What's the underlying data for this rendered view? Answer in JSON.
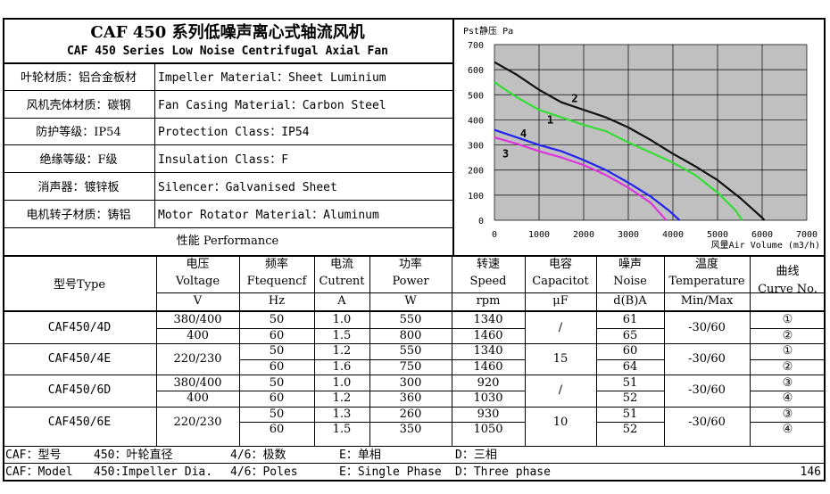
{
  "header": {
    "title_cn": "CAF 450 系列低噪声离心式轴流风机",
    "title_en": "CAF 450 Series Low Noise Centrifugal Axial Fan"
  },
  "specs": [
    {
      "cn": "叶轮材质：铝合金板材",
      "en": "Impeller Material：Sheet Luminium"
    },
    {
      "cn": "风机壳体材质：碳钢",
      "en": "Fan Casing Material：Carbon Steel"
    },
    {
      "cn": "防护等级：IP54",
      "en": "Protection Class：IP54"
    },
    {
      "cn": "绝缘等级：F级",
      "en": "Insulation Class：F"
    },
    {
      "cn": "消声器：镀锌板",
      "en": "Silencer：Galvanised Sheet"
    },
    {
      "cn": "电机转子材质：铸铝",
      "en": "Motor Rotator Material：Aluminum"
    }
  ],
  "performance_label": "性能  Performance",
  "table": {
    "headers": [
      {
        "cn": "型号Type",
        "en": "",
        "unit": ""
      },
      {
        "cn": "电压",
        "en": "Voltage",
        "unit": "V"
      },
      {
        "cn": "频率",
        "en": "Ftequencf",
        "unit": "Hz"
      },
      {
        "cn": "电流",
        "en": "Cutrent",
        "unit": "A"
      },
      {
        "cn": "功率",
        "en": "Power",
        "unit": "W"
      },
      {
        "cn": "转速",
        "en": "Speed",
        "unit": "rpm"
      },
      {
        "cn": "电容",
        "en": "Capacitot",
        "unit": "μF"
      },
      {
        "cn": "噪声",
        "en": "Noise",
        "unit": "d(B)A"
      },
      {
        "cn": "温度",
        "en": "Temperature",
        "unit": "Min/Max"
      },
      {
        "cn": "曲线",
        "en": "Curve No.",
        "unit": ""
      }
    ],
    "groups": [
      {
        "type": "CAF450/4D",
        "capacitor": "/",
        "temperature": "-30/60",
        "rows": [
          {
            "voltage": "380/400",
            "freq": "50",
            "current": "1.0",
            "power": "550",
            "speed": "1340",
            "noise": "61",
            "curve": "①"
          },
          {
            "voltage": "400",
            "freq": "60",
            "current": "1.5",
            "power": "800",
            "speed": "1460",
            "noise": "65",
            "curve": "②"
          }
        ]
      },
      {
        "type": "CAF450/4E",
        "capacitor": "15",
        "temperature": "-30/60",
        "rows": [
          {
            "voltage": "220/230",
            "freq": "50",
            "current": "1.2",
            "power": "550",
            "speed": "1340",
            "noise": "60",
            "curve": "①"
          },
          {
            "voltage": "",
            "freq": "60",
            "current": "1.6",
            "power": "750",
            "speed": "1460",
            "noise": "64",
            "curve": "②"
          }
        ]
      },
      {
        "type": "CAF450/6D",
        "capacitor": "/",
        "temperature": "-30/60",
        "rows": [
          {
            "voltage": "380/400",
            "freq": "50",
            "current": "1.0",
            "power": "300",
            "speed": "920",
            "noise": "51",
            "curve": "③"
          },
          {
            "voltage": "400",
            "freq": "60",
            "current": "1.2",
            "power": "360",
            "speed": "1030",
            "noise": "52",
            "curve": "④"
          }
        ]
      },
      {
        "type": "CAF450/6E",
        "capacitor": "10",
        "temperature": "-30/60",
        "rows": [
          {
            "voltage": "220/230",
            "freq": "50",
            "current": "1.3",
            "power": "260",
            "speed": "930",
            "noise": "51",
            "curve": "③"
          },
          {
            "voltage": "",
            "freq": "60",
            "current": "1.5",
            "power": "350",
            "speed": "1050",
            "noise": "52",
            "curve": "④"
          }
        ]
      }
    ]
  },
  "footer": {
    "line_cn": [
      "CAF：型号",
      "450：叶轮直径",
      "4/6：极数",
      "E：单相",
      "D：三相"
    ],
    "line_en": [
      "CAF：Model",
      "450:Impeller Dia.",
      "4/6：Poles",
      "E：Single Phase",
      "D：Three phase"
    ],
    "page_number": "146"
  },
  "chart_data": {
    "type": "line",
    "ylabel": "Pst静压 Pa",
    "xlabel": "风量Air Volume (m3/h)",
    "xlim": [
      0,
      7000
    ],
    "ylim": [
      0,
      700
    ],
    "x_ticks": [
      0,
      1000,
      2000,
      3000,
      4000,
      5000,
      6000,
      7000
    ],
    "y_ticks": [
      0,
      100,
      200,
      300,
      400,
      500,
      600,
      700
    ],
    "grid": true,
    "background": "#c0c0c0",
    "series": [
      {
        "name": "1",
        "color": "#33dd33",
        "label_at": [
          1250,
          385
        ],
        "points": [
          [
            0,
            550
          ],
          [
            500,
            490
          ],
          [
            1000,
            440
          ],
          [
            1500,
            410
          ],
          [
            2000,
            380
          ],
          [
            2500,
            355
          ],
          [
            3000,
            310
          ],
          [
            3500,
            270
          ],
          [
            4000,
            230
          ],
          [
            4500,
            180
          ],
          [
            5000,
            110
          ],
          [
            5400,
            40
          ],
          [
            5550,
            0
          ]
        ]
      },
      {
        "name": "2",
        "color": "#111111",
        "label_at": [
          1800,
          470
        ],
        "points": [
          [
            0,
            630
          ],
          [
            500,
            580
          ],
          [
            1000,
            520
          ],
          [
            1500,
            470
          ],
          [
            2000,
            440
          ],
          [
            2500,
            410
          ],
          [
            3000,
            370
          ],
          [
            3500,
            320
          ],
          [
            4000,
            265
          ],
          [
            4500,
            215
          ],
          [
            5000,
            160
          ],
          [
            5500,
            90
          ],
          [
            6000,
            10
          ],
          [
            6050,
            0
          ]
        ]
      },
      {
        "name": "3",
        "color": "#dd33dd",
        "label_at": [
          250,
          250
        ],
        "points": [
          [
            0,
            330
          ],
          [
            500,
            305
          ],
          [
            1000,
            275
          ],
          [
            1500,
            250
          ],
          [
            2000,
            220
          ],
          [
            2500,
            180
          ],
          [
            3000,
            130
          ],
          [
            3500,
            70
          ],
          [
            3800,
            10
          ],
          [
            3850,
            0
          ]
        ]
      },
      {
        "name": "4",
        "color": "#2222ee",
        "label_at": [
          650,
          330
        ],
        "points": [
          [
            0,
            360
          ],
          [
            500,
            330
          ],
          [
            1000,
            300
          ],
          [
            1500,
            275
          ],
          [
            2000,
            240
          ],
          [
            2500,
            200
          ],
          [
            3000,
            150
          ],
          [
            3500,
            95
          ],
          [
            3900,
            40
          ],
          [
            4150,
            0
          ]
        ]
      }
    ]
  }
}
